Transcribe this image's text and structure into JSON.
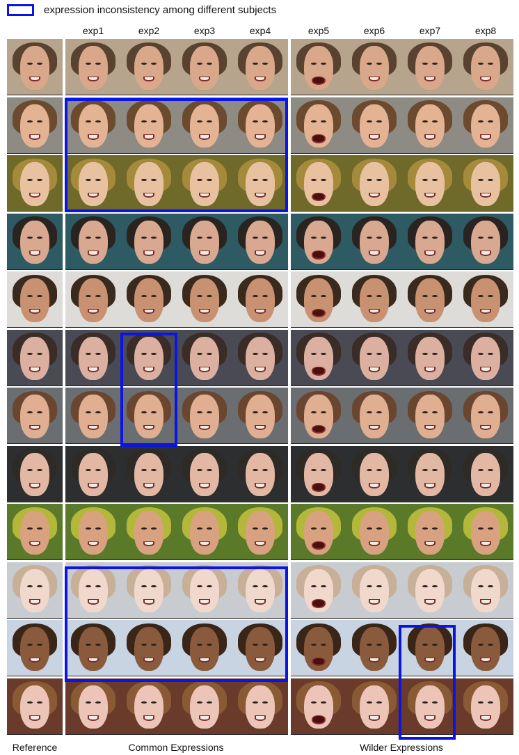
{
  "legend": {
    "text": "expression inconsistency among different subjects",
    "color": "#0a14e6"
  },
  "columns": [
    "exp1",
    "exp2",
    "exp3",
    "exp4",
    "exp5",
    "exp6",
    "exp7",
    "exp8"
  ],
  "captions": {
    "reference": "Reference",
    "common": "Common Expressions",
    "wilder": "Wilder Expressions"
  },
  "subjects": [
    {
      "skin": "#d9a88a",
      "hair": "#5a4230",
      "bg": "#b7a48c"
    },
    {
      "skin": "#e4b394",
      "hair": "#6b4a2d",
      "bg": "#8e8a84"
    },
    {
      "skin": "#e8c2a0",
      "hair": "#a48a3a",
      "bg": "#6f6a2a"
    },
    {
      "skin": "#d8a890",
      "hair": "#2a2420",
      "bg": "#2e5a64"
    },
    {
      "skin": "#c89272",
      "hair": "#3a2a1e",
      "bg": "#dedcd8"
    },
    {
      "skin": "#dcb0a0",
      "hair": "#3a2c26",
      "bg": "#4a4a54"
    },
    {
      "skin": "#e0ae90",
      "hair": "#6a4630",
      "bg": "#6a6e70"
    },
    {
      "skin": "#e2b8a4",
      "hair": "#2e2a26",
      "bg": "#2c2e30"
    },
    {
      "skin": "#d8a280",
      "hair": "#b4b83a",
      "bg": "#5a7a2a"
    },
    {
      "skin": "#f0d8cc",
      "hair": "#c8b098",
      "bg": "#c8ccd0"
    },
    {
      "skin": "#8a5a3c",
      "hair": "#3a2618",
      "bg": "#c8d4e2"
    },
    {
      "skin": "#ecc4b8",
      "hair": "#8a5a34",
      "bg": "#6a3a2a"
    }
  ]
}
